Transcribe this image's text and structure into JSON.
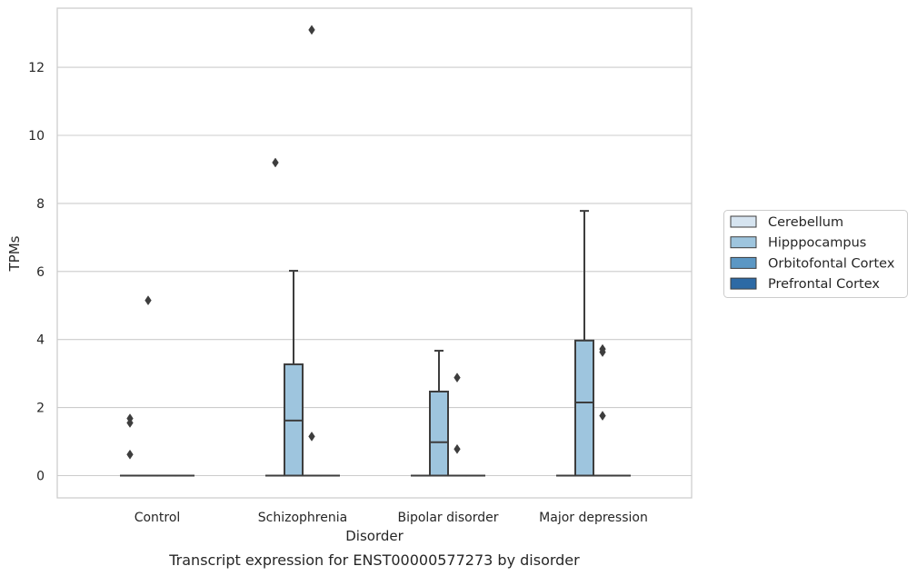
{
  "chart_data": {
    "type": "box",
    "xlabel": "Disorder",
    "ylabel": "TPMs",
    "caption": "Transcript expression for ENST00000577273 by disorder",
    "categories": [
      "Control",
      "Schizophrenia",
      "Bipolar disorder",
      "Major depression"
    ],
    "ylim": [
      -0.65,
      13.8
    ],
    "yticks": [
      0,
      2,
      4,
      6,
      8,
      10,
      12
    ],
    "grid": true,
    "legend_position": "right",
    "series": [
      {
        "name": "Cerebellum",
        "color": "#d6e4f0"
      },
      {
        "name": "Hipppocampus",
        "color": "#9ec5de"
      },
      {
        "name": "Orbitofontal Cortex",
        "color": "#5b97c4"
      },
      {
        "name": "Prefrontal Cortex",
        "color": "#2d6aa5"
      }
    ],
    "boxes": [
      {
        "category": "Control",
        "series": "Cerebellum",
        "q1": 0,
        "median": 0,
        "q3": 0,
        "whisker_low": 0,
        "whisker_high": 0,
        "outliers": [
          1.68,
          1.55,
          0.62
        ]
      },
      {
        "category": "Control",
        "series": "Hipppocampus",
        "q1": 0,
        "median": 0,
        "q3": 0,
        "whisker_low": 0,
        "whisker_high": 0,
        "outliers": [
          5.15
        ]
      },
      {
        "category": "Control",
        "series": "Orbitofontal Cortex",
        "q1": 0,
        "median": 0,
        "q3": 0,
        "whisker_low": 0,
        "whisker_high": 0,
        "outliers": []
      },
      {
        "category": "Control",
        "series": "Prefrontal Cortex",
        "q1": 0,
        "median": 0,
        "q3": 0,
        "whisker_low": 0,
        "whisker_high": 0,
        "outliers": []
      },
      {
        "category": "Schizophrenia",
        "series": "Cerebellum",
        "q1": 0,
        "median": 0,
        "q3": 0,
        "whisker_low": 0,
        "whisker_high": 0,
        "outliers": [
          9.2
        ]
      },
      {
        "category": "Schizophrenia",
        "series": "Hipppocampus",
        "q1": 0,
        "median": 1.62,
        "q3": 3.27,
        "whisker_low": 0,
        "whisker_high": 6.02,
        "outliers": []
      },
      {
        "category": "Schizophrenia",
        "series": "Orbitofontal Cortex",
        "q1": 0,
        "median": 0,
        "q3": 0,
        "whisker_low": 0,
        "whisker_high": 0,
        "outliers": [
          13.1,
          1.15
        ]
      },
      {
        "category": "Schizophrenia",
        "series": "Prefrontal Cortex",
        "q1": 0,
        "median": 0,
        "q3": 0,
        "whisker_low": 0,
        "whisker_high": 0,
        "outliers": []
      },
      {
        "category": "Bipolar disorder",
        "series": "Cerebellum",
        "q1": 0,
        "median": 0,
        "q3": 0,
        "whisker_low": 0,
        "whisker_high": 0,
        "outliers": []
      },
      {
        "category": "Bipolar disorder",
        "series": "Hipppocampus",
        "q1": 0,
        "median": 0.98,
        "q3": 2.47,
        "whisker_low": 0,
        "whisker_high": 3.67,
        "outliers": []
      },
      {
        "category": "Bipolar disorder",
        "series": "Orbitofontal Cortex",
        "q1": 0,
        "median": 0,
        "q3": 0,
        "whisker_low": 0,
        "whisker_high": 0,
        "outliers": [
          2.88,
          0.78
        ]
      },
      {
        "category": "Bipolar disorder",
        "series": "Prefrontal Cortex",
        "q1": 0,
        "median": 0,
        "q3": 0,
        "whisker_low": 0,
        "whisker_high": 0,
        "outliers": []
      },
      {
        "category": "Major depression",
        "series": "Cerebellum",
        "q1": 0,
        "median": 0,
        "q3": 0,
        "whisker_low": 0,
        "whisker_high": 0,
        "outliers": []
      },
      {
        "category": "Major depression",
        "series": "Hipppocampus",
        "q1": 0,
        "median": 2.15,
        "q3": 3.97,
        "whisker_low": 0,
        "whisker_high": 7.78,
        "outliers": []
      },
      {
        "category": "Major depression",
        "series": "Orbitofontal Cortex",
        "q1": 0,
        "median": 0,
        "q3": 0,
        "whisker_low": 0,
        "whisker_high": 0,
        "outliers": [
          3.72,
          3.63,
          1.76
        ]
      },
      {
        "category": "Major depression",
        "series": "Prefrontal Cortex",
        "q1": 0,
        "median": 0,
        "q3": 0,
        "whisker_low": 0,
        "whisker_high": 0,
        "outliers": []
      }
    ]
  }
}
